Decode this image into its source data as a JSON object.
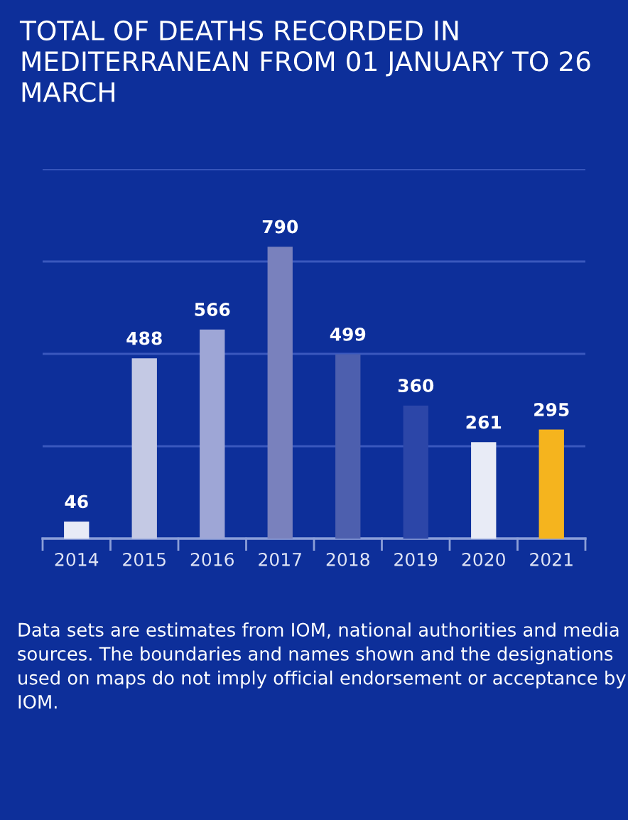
{
  "chart_data": {
    "type": "bar",
    "title": "TOTAL OF DEATHS RECORDED IN MEDITERRANEAN FROM 01 JANUARY TO 26 MARCH",
    "categories": [
      "2014",
      "2015",
      "2016",
      "2017",
      "2018",
      "2019",
      "2020",
      "2021"
    ],
    "values": [
      46,
      488,
      566,
      790,
      499,
      360,
      261,
      295
    ],
    "colors": [
      "#e8ebf6",
      "#c4c9e4",
      "#9ea6d6",
      "#7981bd",
      "#4d5fae",
      "#2c46a8",
      "#e8ebf6",
      "#f5b41e"
    ],
    "data_labels": true,
    "ylim": [
      0,
      1000
    ],
    "yticks": [
      {
        "value": 0,
        "label": null
      },
      {
        "value": 250,
        "label": null
      },
      {
        "value": 500,
        "label": null
      },
      {
        "value": 750,
        "label": null
      },
      {
        "value": 1000,
        "label": null
      }
    ],
    "grid": "y",
    "tick_labels": "x",
    "annotations": [
      "Data sets are estimates from IOM, national authorities and media sources. The boundaries and names shown and the designations used on maps do not imply official endorsement or acceptance by IOM."
    ]
  }
}
